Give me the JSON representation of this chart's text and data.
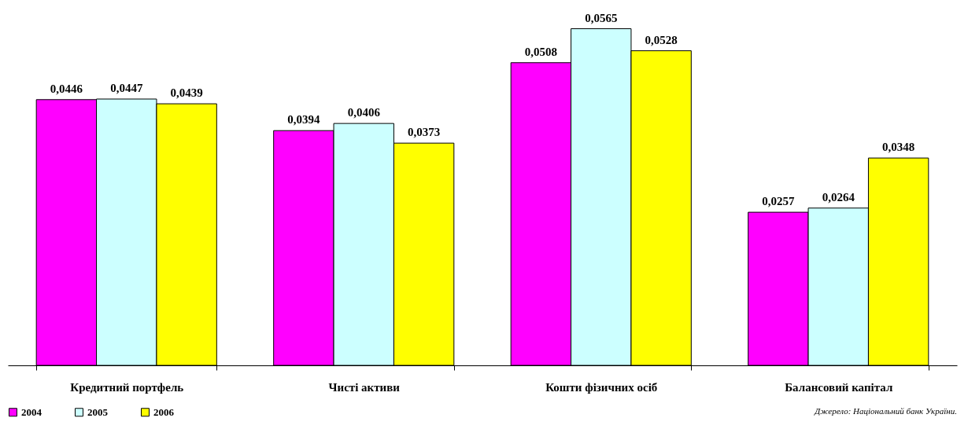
{
  "chart_data": {
    "type": "bar",
    "categories": [
      "Кредитний портфель",
      "Чисті активи",
      "Кошти фізичних осіб",
      "Балансовий капітал"
    ],
    "series": [
      {
        "name": "2004",
        "color": "#ff00ff",
        "values": [
          0.0446,
          0.0394,
          0.0508,
          0.0257
        ],
        "value_labels": [
          "0,0446",
          "0,0394",
          "0,0508",
          "0,0257"
        ]
      },
      {
        "name": "2005",
        "color": "#ccffff",
        "values": [
          0.0447,
          0.0406,
          0.0565,
          0.0264
        ],
        "value_labels": [
          "0,0447",
          "0,0406",
          "0,0565",
          "0,0264"
        ]
      },
      {
        "name": "2006",
        "color": "#ffff00",
        "values": [
          0.0439,
          0.0373,
          0.0528,
          0.0348
        ],
        "value_labels": [
          "0,0439",
          "0,0373",
          "0,0528",
          "0,0348"
        ]
      }
    ],
    "grid": false,
    "legend": "bottom",
    "annotations": [
      "Джерело: Національний банк України."
    ]
  }
}
